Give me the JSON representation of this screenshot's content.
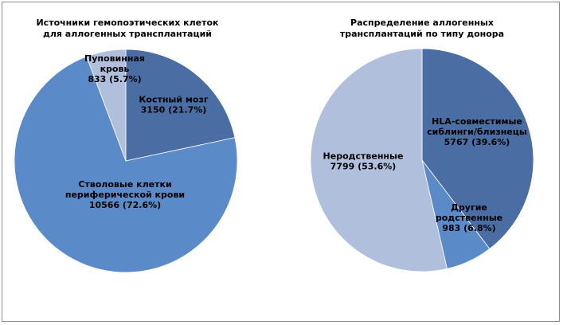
{
  "chart_data": [
    {
      "type": "pie",
      "title_lines": [
        "Источники гемопоэтических клеток",
        "для аллогенных трансплантаций"
      ],
      "slices": [
        {
          "label_lines": [
            "Костный мозг",
            "3150 (21.7%)"
          ],
          "value": 3150,
          "percent": 21.7,
          "color": "#4a6da3"
        },
        {
          "label_lines": [
            "Стволовые клетки",
            "периферической крови",
            "10566 (72.6%)"
          ],
          "value": 10566,
          "percent": 72.6,
          "color": "#5b8ac9"
        },
        {
          "label_lines": [
            "Пуповинная",
            "кровь",
            "833 (5.7%)"
          ],
          "value": 833,
          "percent": 5.7,
          "color": "#b0c0dc"
        }
      ]
    },
    {
      "type": "pie",
      "title_lines": [
        "Распределение аллогенных",
        "трансплантаций по типу донора"
      ],
      "slices": [
        {
          "label_lines": [
            "HLA-совместимые",
            "сиблинги/близнецы",
            "5767 (39.6%)"
          ],
          "value": 5767,
          "percent": 39.6,
          "color": "#4a6da3"
        },
        {
          "label_lines": [
            "Другие",
            "родственные",
            "983 (6.8%)"
          ],
          "value": 983,
          "percent": 6.8,
          "color": "#5b8ac9"
        },
        {
          "label_lines": [
            "Неродственные",
            "7799 (53.6%)"
          ],
          "value": 7799,
          "percent": 53.6,
          "color": "#b0c0dc"
        }
      ]
    }
  ]
}
